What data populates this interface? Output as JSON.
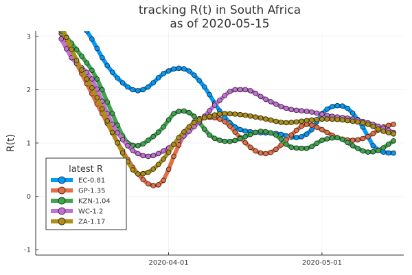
{
  "chart_data": {
    "type": "line",
    "title": "tracking R(t) in South Africa",
    "subtitle": "as of 2020-05-15",
    "xlabel": "",
    "ylabel": "R(t)",
    "x_start": "2020-03-11",
    "x_end": "2020-05-15",
    "xlim": [
      "2020-03-06",
      "2020-05-17"
    ],
    "ylim": [
      -1.1,
      3.1
    ],
    "x_ticks": [
      "2020-04-01",
      "2020-05-01"
    ],
    "y_ticks": [
      -1,
      0,
      1,
      2,
      3
    ],
    "grid": true,
    "legend_title": "latest R",
    "legend_position": "bottom-left",
    "series": [
      {
        "name": "EC-0.81",
        "color": "#009AFA",
        "keyframes": [
          [
            "2020-03-11",
            3.65
          ],
          [
            "2020-03-16",
            3.1
          ],
          [
            "2020-03-20",
            2.45
          ],
          [
            "2020-03-24",
            2.05
          ],
          [
            "2020-03-26",
            1.98
          ],
          [
            "2020-03-28",
            2.05
          ],
          [
            "2020-03-31",
            2.3
          ],
          [
            "2020-04-03",
            2.4
          ],
          [
            "2020-04-05",
            2.35
          ],
          [
            "2020-04-08",
            2.05
          ],
          [
            "2020-04-11",
            1.6
          ],
          [
            "2020-04-14",
            1.3
          ],
          [
            "2020-04-18",
            1.2
          ],
          [
            "2020-04-22",
            1.18
          ],
          [
            "2020-04-26",
            1.1
          ],
          [
            "2020-04-29",
            1.25
          ],
          [
            "2020-05-01",
            1.55
          ],
          [
            "2020-05-04",
            1.7
          ],
          [
            "2020-05-06",
            1.65
          ],
          [
            "2020-05-09",
            1.3
          ],
          [
            "2020-05-11",
            0.95
          ],
          [
            "2020-05-13",
            0.83
          ],
          [
            "2020-05-15",
            0.81
          ]
        ]
      },
      {
        "name": "GP-1.35",
        "color": "#E36F47",
        "keyframes": [
          [
            "2020-03-11",
            3.05
          ],
          [
            "2020-03-15",
            2.3
          ],
          [
            "2020-03-19",
            1.55
          ],
          [
            "2020-03-23",
            0.85
          ],
          [
            "2020-03-26",
            0.42
          ],
          [
            "2020-03-29",
            0.2
          ],
          [
            "2020-03-31",
            0.3
          ],
          [
            "2020-04-02",
            0.75
          ],
          [
            "2020-04-04",
            1.15
          ],
          [
            "2020-04-06",
            1.4
          ],
          [
            "2020-04-09",
            1.48
          ],
          [
            "2020-04-12",
            1.4
          ],
          [
            "2020-04-15",
            1.1
          ],
          [
            "2020-04-18",
            0.85
          ],
          [
            "2020-04-20",
            0.8
          ],
          [
            "2020-04-22",
            0.88
          ],
          [
            "2020-04-25",
            1.15
          ],
          [
            "2020-04-28",
            1.35
          ],
          [
            "2020-05-01",
            1.25
          ],
          [
            "2020-05-04",
            1.1
          ],
          [
            "2020-05-07",
            1.05
          ],
          [
            "2020-05-10",
            1.12
          ],
          [
            "2020-05-13",
            1.3
          ],
          [
            "2020-05-15",
            1.35
          ]
        ]
      },
      {
        "name": "KZN-1.04",
        "color": "#3EA44E",
        "keyframes": [
          [
            "2020-03-11",
            3.1
          ],
          [
            "2020-03-14",
            2.75
          ],
          [
            "2020-03-18",
            2.2
          ],
          [
            "2020-03-21",
            1.55
          ],
          [
            "2020-03-24",
            1.0
          ],
          [
            "2020-03-26",
            0.95
          ],
          [
            "2020-03-28",
            1.05
          ],
          [
            "2020-03-31",
            1.3
          ],
          [
            "2020-04-02",
            1.55
          ],
          [
            "2020-04-04",
            1.6
          ],
          [
            "2020-04-06",
            1.5
          ],
          [
            "2020-04-09",
            1.15
          ],
          [
            "2020-04-11",
            1.05
          ],
          [
            "2020-04-13",
            1.03
          ],
          [
            "2020-04-16",
            1.12
          ],
          [
            "2020-04-19",
            1.22
          ],
          [
            "2020-04-22",
            1.15
          ],
          [
            "2020-04-25",
            0.92
          ],
          [
            "2020-04-28",
            0.9
          ],
          [
            "2020-05-01",
            1.05
          ],
          [
            "2020-05-04",
            1.1
          ],
          [
            "2020-05-07",
            0.95
          ],
          [
            "2020-05-10",
            0.83
          ],
          [
            "2020-05-12",
            0.86
          ],
          [
            "2020-05-15",
            1.04
          ]
        ]
      },
      {
        "name": "WC-1.2",
        "color": "#C270D2",
        "keyframes": [
          [
            "2020-03-11",
            2.95
          ],
          [
            "2020-03-13",
            2.6
          ],
          [
            "2020-03-17",
            2.2
          ],
          [
            "2020-03-21",
            1.35
          ],
          [
            "2020-03-24",
            0.95
          ],
          [
            "2020-03-26",
            0.8
          ],
          [
            "2020-03-28",
            0.75
          ],
          [
            "2020-03-31",
            0.85
          ],
          [
            "2020-04-03",
            1.05
          ],
          [
            "2020-04-07",
            1.4
          ],
          [
            "2020-04-11",
            1.8
          ],
          [
            "2020-04-14",
            2.0
          ],
          [
            "2020-04-16",
            2.0
          ],
          [
            "2020-04-20",
            1.82
          ],
          [
            "2020-04-24",
            1.65
          ],
          [
            "2020-04-29",
            1.58
          ],
          [
            "2020-05-03",
            1.5
          ],
          [
            "2020-05-07",
            1.45
          ],
          [
            "2020-05-11",
            1.35
          ],
          [
            "2020-05-15",
            1.2
          ]
        ]
      },
      {
        "name": "ZA-1.17",
        "color": "#AC8E18",
        "keyframes": [
          [
            "2020-03-11",
            3.2
          ],
          [
            "2020-03-14",
            2.55
          ],
          [
            "2020-03-18",
            1.85
          ],
          [
            "2020-03-21",
            1.2
          ],
          [
            "2020-03-24",
            0.65
          ],
          [
            "2020-03-26",
            0.42
          ],
          [
            "2020-03-28",
            0.45
          ],
          [
            "2020-03-31",
            0.7
          ],
          [
            "2020-04-03",
            1.1
          ],
          [
            "2020-04-06",
            1.38
          ],
          [
            "2020-04-09",
            1.5
          ],
          [
            "2020-04-12",
            1.55
          ],
          [
            "2020-04-16",
            1.52
          ],
          [
            "2020-04-20",
            1.45
          ],
          [
            "2020-04-24",
            1.38
          ],
          [
            "2020-04-28",
            1.42
          ],
          [
            "2020-05-02",
            1.45
          ],
          [
            "2020-05-06",
            1.42
          ],
          [
            "2020-05-10",
            1.35
          ],
          [
            "2020-05-13",
            1.22
          ],
          [
            "2020-05-15",
            1.17
          ]
        ]
      }
    ]
  }
}
